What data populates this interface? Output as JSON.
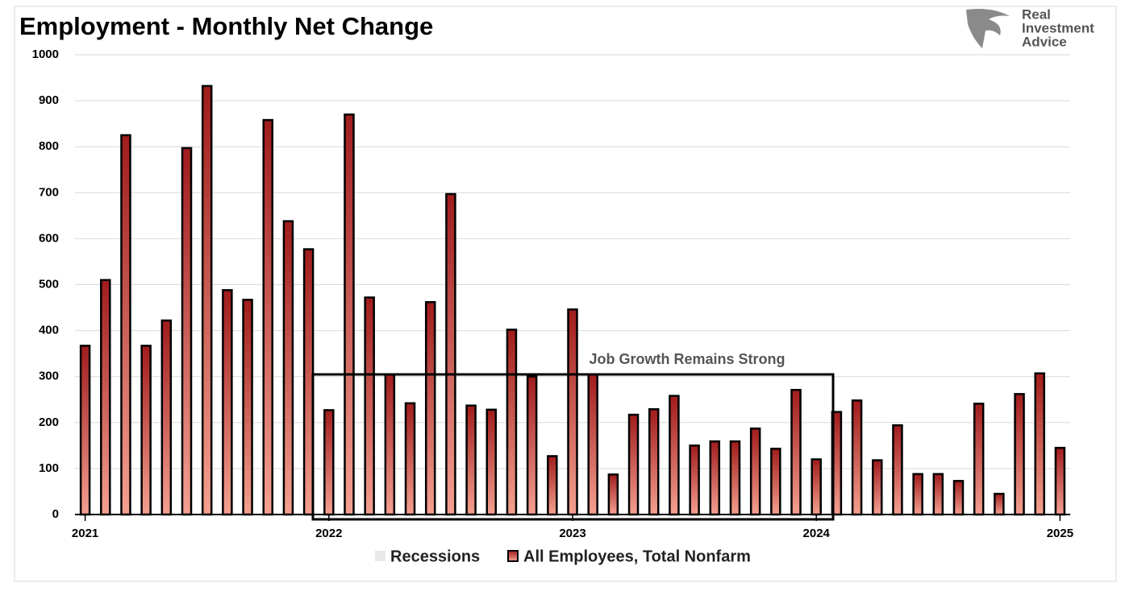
{
  "chart_data": {
    "type": "bar",
    "title": "Employment - Monthly Net Change",
    "categories": [
      "2021",
      null,
      null,
      null,
      null,
      null,
      null,
      null,
      null,
      null,
      null,
      null,
      "2022",
      null,
      null,
      null,
      null,
      null,
      null,
      null,
      null,
      null,
      null,
      null,
      "2023",
      null,
      null,
      null,
      null,
      null,
      null,
      null,
      null,
      null,
      null,
      null,
      "2024",
      null,
      null,
      null,
      null,
      null,
      null,
      null,
      null,
      null,
      null,
      null,
      "2025"
    ],
    "series": [
      {
        "name": "All Employees, Total Nonfarm",
        "color": "#a01c1c",
        "values": [
          367,
          510,
          825,
          367,
          422,
          797,
          932,
          488,
          467,
          858,
          638,
          577,
          227,
          870,
          472,
          305,
          242,
          462,
          697,
          237,
          228,
          402,
          300,
          127,
          446,
          305,
          87,
          217,
          229,
          258,
          150,
          159,
          159,
          187,
          143,
          271,
          120,
          223,
          248,
          118,
          194,
          88,
          88,
          73,
          241,
          45,
          262,
          307,
          145
        ]
      }
    ],
    "recessions": {
      "name": "Recessions",
      "color": "#e8e8e8"
    },
    "annotation": "Job Growth Remains Strong",
    "ylim": [
      0,
      1000
    ],
    "yticks": [
      0,
      100,
      200,
      300,
      400,
      500,
      600,
      700,
      800,
      900,
      1000
    ],
    "grid": true
  },
  "logo": [
    "Real",
    "Investment",
    "Advice"
  ]
}
